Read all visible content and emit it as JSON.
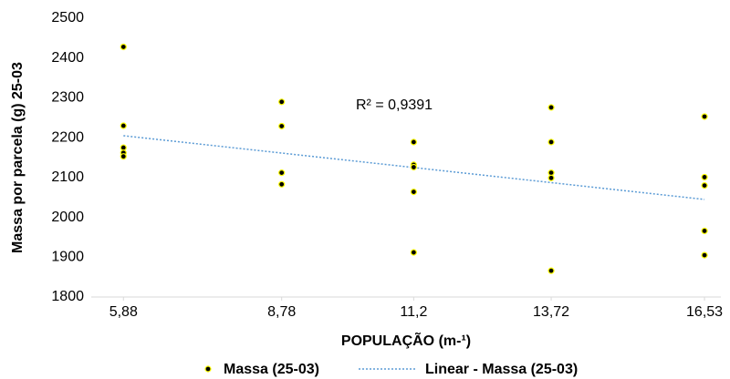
{
  "chart_data": {
    "type": "scatter",
    "ylabel": "Massa por parcela (g) 25-03",
    "xlabel": "POPULAÇÃO (m-¹)",
    "xlim": [
      5.29,
      16.83
    ],
    "xticks": [
      {
        "value": 5.88,
        "label": "5,88"
      },
      {
        "value": 8.78,
        "label": "8,78"
      },
      {
        "value": 11.2,
        "label": "11,2"
      },
      {
        "value": 13.72,
        "label": "13,72"
      },
      {
        "value": 16.53,
        "label": "16,53"
      }
    ],
    "ylim": [
      1800,
      2500
    ],
    "yticks": [
      1800,
      1900,
      2000,
      2100,
      2200,
      2300,
      2400,
      2500
    ],
    "grid": false,
    "legend": "bottom",
    "series": [
      {
        "name": "Massa (25-03)",
        "color": "#000000",
        "edgecolor": "#ffff00",
        "x": [
          5.88,
          5.88,
          5.88,
          5.88,
          5.88,
          8.78,
          8.78,
          8.78,
          8.78,
          11.2,
          11.2,
          11.2,
          11.2,
          11.2,
          13.72,
          13.72,
          13.72,
          13.72,
          13.72,
          16.53,
          16.53,
          16.53,
          16.53,
          16.53
        ],
        "values": [
          2428,
          2230,
          2175,
          2162,
          2153,
          2290,
          2229,
          2112,
          2083,
          2189,
          2132,
          2126,
          2064,
          1912,
          2276,
          2189,
          2112,
          2099,
          1866,
          2253,
          2101,
          2080,
          1966,
          1905
        ]
      }
    ],
    "trendline": {
      "name": "Linear - Massa (25-03)",
      "color": "#5b9bd5",
      "x": [
        5.88,
        16.53
      ],
      "values": [
        2205,
        2045
      ],
      "annotation": "R² = 0,9391"
    }
  }
}
